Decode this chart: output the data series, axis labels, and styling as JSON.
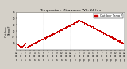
{
  "title": "Temperature Milwaukee WI - 24 hrs",
  "ylabel_left": "Outdoor\nTemp F",
  "background_color": "#d4d0c8",
  "plot_bg_color": "#ffffff",
  "line_color": "#cc0000",
  "legend_color": "#cc0000",
  "legend_label": "Outdoor Temp F",
  "ylim": [
    20,
    80
  ],
  "xlim": [
    0,
    1440
  ],
  "yticks": [
    30,
    40,
    50,
    60,
    70,
    80
  ],
  "vlines": [
    360,
    720
  ],
  "num_points": 1440,
  "temp_min": 22,
  "temp_max": 66,
  "peak_minute": 840,
  "valley_minute": 120,
  "title_fontsize": 3.2,
  "tick_fontsize": 2.0,
  "ylabel_fontsize": 2.5,
  "legend_fontsize": 2.5,
  "noise_seed": 42,
  "noise_std": 0.6
}
